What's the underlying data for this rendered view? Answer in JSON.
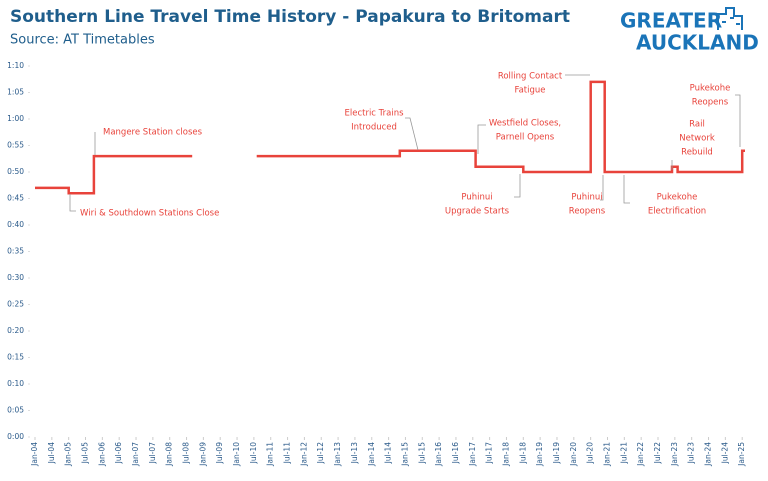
{
  "chart_data": {
    "type": "line",
    "title": "Southern Line Travel Time History - Papakura to Britomart",
    "subtitle": "Source: AT Timetables",
    "logo": [
      "GREATER",
      "AUCKLAND"
    ],
    "color": "#e8433b",
    "x": [
      "Jan-04",
      "Jan-05",
      "Jan-05",
      "Oct-05",
      "Oct-05",
      "Sep-08",
      "Jan-09",
      "Aug-10",
      "Nov-14",
      "Nov-14",
      "Feb-17",
      "Feb-17",
      "Jul-18",
      "Jul-18",
      "Jul-20",
      "Jul-20",
      "Dec-20",
      "Dec-20",
      "Dec-22",
      "Dec-22",
      "Feb-23",
      "Feb-23",
      "Jan-25",
      "Jan-25",
      "Feb-25"
    ],
    "values": [
      47,
      47,
      46,
      46,
      53,
      53,
      null,
      53,
      53,
      54,
      54,
      51,
      51,
      50,
      50,
      67,
      67,
      50,
      50,
      51,
      51,
      50,
      50,
      54,
      54
    ],
    "xlim": [
      "Jan-04",
      "Feb-25"
    ],
    "xticks": [
      "Jan-04",
      "Jul-04",
      "Jan-05",
      "Jul-05",
      "Jan-06",
      "Jul-06",
      "Jan-07",
      "Jul-07",
      "Jan-08",
      "Jul-08",
      "Jan-09",
      "Jul-09",
      "Jan-10",
      "Jul-10",
      "Jan-11",
      "Jul-11",
      "Jan-12",
      "Jul-12",
      "Jan-13",
      "Jul-13",
      "Jan-14",
      "Jul-14",
      "Jan-15",
      "Jul-15",
      "Jan-16",
      "Jul-16",
      "Jan-17",
      "Jul-17",
      "Jan-18",
      "Jul-18",
      "Jan-19",
      "Jul-19",
      "Jan-20",
      "Jul-20",
      "Jan-21",
      "Jul-21",
      "Jan-22",
      "Jul-22",
      "Jan-23",
      "Jul-23",
      "Jan-24",
      "Jul-24",
      "Jan-25"
    ],
    "ylim": [
      0,
      70
    ],
    "yticks": [
      {
        "value": 0,
        "label": "0:00"
      },
      {
        "value": 5,
        "label": "0:05"
      },
      {
        "value": 10,
        "label": "0:10"
      },
      {
        "value": 15,
        "label": "0:15"
      },
      {
        "value": 20,
        "label": "0:20"
      },
      {
        "value": 25,
        "label": "0:25"
      },
      {
        "value": 30,
        "label": "0:30"
      },
      {
        "value": 35,
        "label": "0:35"
      },
      {
        "value": 40,
        "label": "0:40"
      },
      {
        "value": 45,
        "label": "0:45"
      },
      {
        "value": 50,
        "label": "0:50"
      },
      {
        "value": 55,
        "label": "0:55"
      },
      {
        "value": 60,
        "label": "1:00"
      },
      {
        "value": 65,
        "label": "1:05"
      },
      {
        "value": 70,
        "label": "1:10"
      }
    ],
    "annotations": [
      [
        "Mangere Station closes"
      ],
      [
        "Wiri & Southdown Stations Close"
      ],
      [
        "Electric Trains",
        "Introduced"
      ],
      [
        "Westfield Closes,",
        "Parnell Opens"
      ],
      [
        "Puhinui",
        "Upgrade Starts"
      ],
      [
        "Rolling Contact",
        "Fatigue"
      ],
      [
        "Puhinui",
        "Reopens"
      ],
      [
        "Pukekohe",
        "Electrification"
      ],
      [
        "Rail",
        "Network",
        "Rebuild"
      ],
      [
        "Pukekohe",
        "Reopens"
      ]
    ]
  }
}
